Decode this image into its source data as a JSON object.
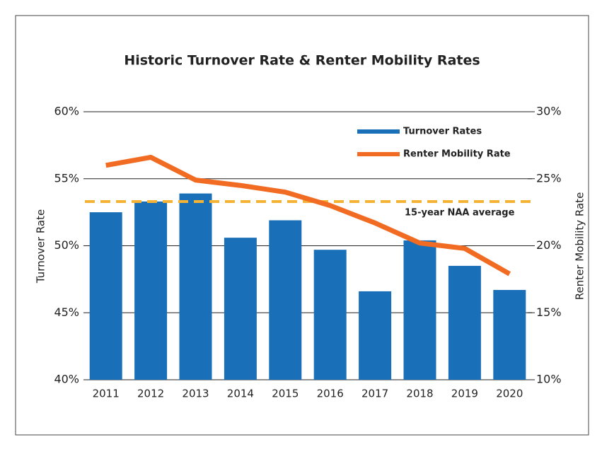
{
  "chart_data": {
    "type": "bar_line",
    "title": "Historic Turnover Rate & Renter Mobility Rates",
    "categories": [
      "2011",
      "2012",
      "2013",
      "2014",
      "2015",
      "2016",
      "2017",
      "2018",
      "2019",
      "2020"
    ],
    "series": [
      {
        "name": "Turnover Rates",
        "color": "#1a70b8",
        "type": "bar",
        "axis": "y",
        "values": [
          52.5,
          53.3,
          53.9,
          50.6,
          51.9,
          49.7,
          46.6,
          50.4,
          48.5,
          46.7
        ]
      },
      {
        "name": "Renter Mobility Rate",
        "color": "#f26b22",
        "type": "line",
        "axis": "y2",
        "values": [
          26.0,
          26.6,
          24.9,
          24.5,
          24.0,
          23.0,
          21.7,
          20.2,
          19.8,
          17.9
        ]
      }
    ],
    "reference_line": {
      "value": 53.3,
      "label": "15-year NAA average",
      "color": "#f5b335"
    },
    "ylabel": "Turnover Rate",
    "y2label": "Renter Mobility Rate",
    "ylim": [
      40,
      60
    ],
    "yticks": [
      {
        "value": 40,
        "label": "40%"
      },
      {
        "value": 45,
        "label": "45%"
      },
      {
        "value": 50,
        "label": "50%"
      },
      {
        "value": 55,
        "label": "55%"
      },
      {
        "value": 60,
        "label": "60%"
      }
    ],
    "y2lim": [
      10,
      30
    ],
    "y2ticks": [
      {
        "value": 10,
        "label": "10%"
      },
      {
        "value": 15,
        "label": "15%"
      },
      {
        "value": 20,
        "label": "20%"
      },
      {
        "value": 25,
        "label": "25%"
      },
      {
        "value": 30,
        "label": "30%"
      }
    ],
    "grid": true,
    "legend": "top-right"
  }
}
